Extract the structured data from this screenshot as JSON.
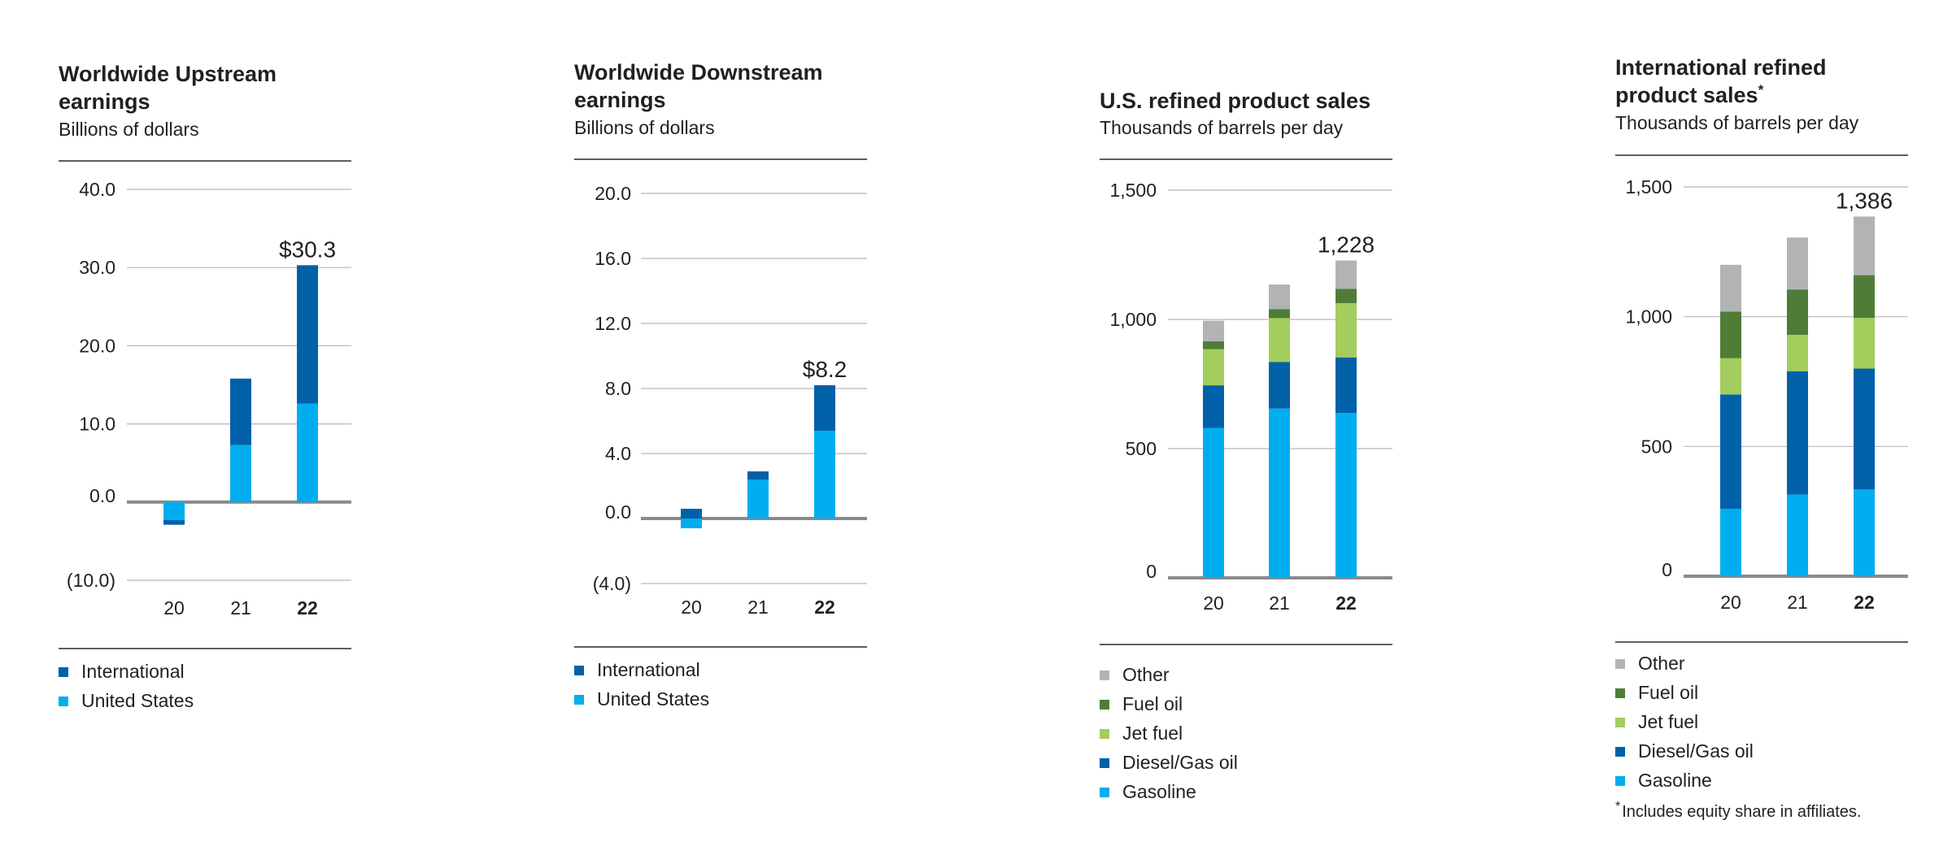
{
  "colors": {
    "gasoline": "#00aeef",
    "united_states": "#00aeef",
    "diesel": "#0061a8",
    "international": "#0061a8",
    "jet": "#a3cd5c",
    "fuel_oil": "#4f7d37",
    "other": "#b2b3b5",
    "gridline": "#b8b8b8",
    "baseline": "#8a8a8a"
  },
  "footnote": "Includes equity share in affiliates.",
  "footnote_marker": "*",
  "chart_data": [
    {
      "id": "upstream",
      "type": "bar",
      "stacked": true,
      "title": "Worldwide Upstream earnings",
      "subtitle": "Billions of dollars",
      "categories": [
        "20",
        "21",
        "22"
      ],
      "bold_category": "22",
      "y_ticks": [
        "40.0",
        "30.0",
        "20.0",
        "10.0",
        "0.0",
        "(10.0)"
      ],
      "ylim": [
        -10,
        40
      ],
      "series": [
        {
          "name": "United States",
          "color_key": "united_states",
          "values": [
            -2.3,
            7.3,
            12.6
          ]
        },
        {
          "name": "International",
          "color_key": "international",
          "values": [
            -0.6,
            8.5,
            17.7
          ]
        }
      ],
      "data_label": "$30.3",
      "data_label_index": 2,
      "legend": [
        "International",
        "United States"
      ]
    },
    {
      "id": "downstream",
      "type": "bar",
      "stacked": true,
      "title": "Worldwide Downstream earnings",
      "subtitle": "Billions of dollars",
      "categories": [
        "20",
        "21",
        "22"
      ],
      "bold_category": "22",
      "y_ticks": [
        "20.0",
        "16.0",
        "12.0",
        "8.0",
        "4.0",
        "0.0",
        "(4.0)"
      ],
      "ylim": [
        -4,
        20
      ],
      "series": [
        {
          "name": "United States",
          "color_key": "united_states",
          "values": [
            -0.6,
            2.4,
            5.4
          ]
        },
        {
          "name": "International",
          "color_key": "international",
          "values": [
            0.6,
            0.5,
            2.8
          ]
        }
      ],
      "data_label": "$8.2",
      "data_label_index": 2,
      "legend": [
        "International",
        "United States"
      ]
    },
    {
      "id": "us_refined",
      "type": "bar",
      "stacked": true,
      "title": "U.S. refined product sales",
      "subtitle": "Thousands of barrels per day",
      "categories": [
        "20",
        "21",
        "22"
      ],
      "bold_category": "22",
      "y_ticks": [
        "1,500",
        "1,000",
        "500",
        "0"
      ],
      "ylim": [
        0,
        1500
      ],
      "series": [
        {
          "name": "Gasoline",
          "color_key": "gasoline",
          "values": [
            580,
            655,
            638
          ]
        },
        {
          "name": "Diesel/Gas oil",
          "color_key": "diesel",
          "values": [
            165,
            180,
            215
          ]
        },
        {
          "name": "Jet fuel",
          "color_key": "jet",
          "values": [
            140,
            170,
            210
          ]
        },
        {
          "name": "Fuel oil",
          "color_key": "fuel_oil",
          "values": [
            30,
            35,
            55
          ]
        },
        {
          "name": "Other",
          "color_key": "other",
          "values": [
            80,
            95,
            110
          ]
        }
      ],
      "data_label": "1,228",
      "data_label_index": 2,
      "legend": [
        "Other",
        "Fuel oil",
        "Jet fuel",
        "Diesel/Gas oil",
        "Gasoline"
      ]
    },
    {
      "id": "intl_refined",
      "type": "bar",
      "stacked": true,
      "title": "International refined product sales",
      "title_marker": "*",
      "subtitle": "Thousands of barrels per day",
      "categories": [
        "20",
        "21",
        "22"
      ],
      "bold_category": "22",
      "y_ticks": [
        "1,500",
        "1,000",
        "500",
        "0"
      ],
      "ylim": [
        0,
        1500
      ],
      "series": [
        {
          "name": "Gasoline",
          "color_key": "gasoline",
          "values": [
            260,
            315,
            335
          ]
        },
        {
          "name": "Diesel/Gas oil",
          "color_key": "diesel",
          "values": [
            440,
            475,
            465
          ]
        },
        {
          "name": "Jet fuel",
          "color_key": "jet",
          "values": [
            140,
            140,
            195
          ]
        },
        {
          "name": "Fuel oil",
          "color_key": "fuel_oil",
          "values": [
            180,
            175,
            165
          ]
        },
        {
          "name": "Other",
          "color_key": "other",
          "values": [
            180,
            200,
            226
          ]
        }
      ],
      "data_label": "1,386",
      "data_label_index": 2,
      "legend": [
        "Other",
        "Fuel oil",
        "Jet fuel",
        "Diesel/Gas oil",
        "Gasoline"
      ]
    }
  ]
}
